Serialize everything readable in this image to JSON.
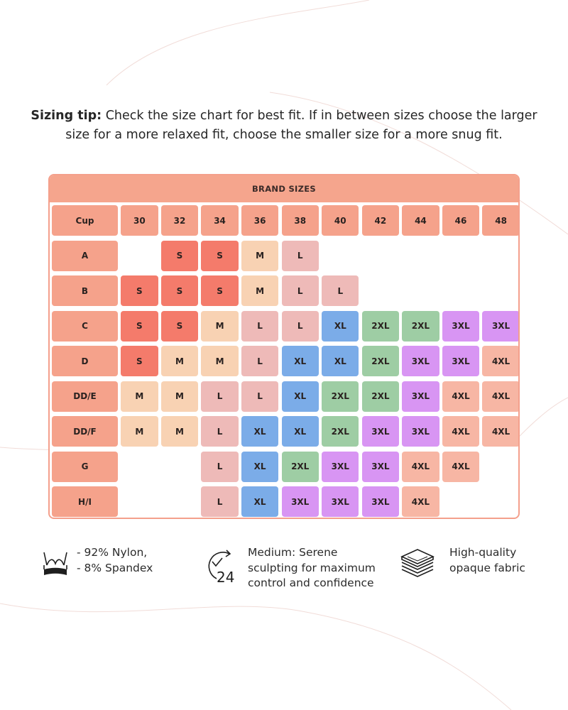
{
  "tip": {
    "label": "Sizing tip:",
    "text": " Check the size chart for best fit. If in between sizes choose the larger size for a more relaxed fit, choose the smaller size for a more snug fit."
  },
  "chart": {
    "title": "BRAND SIZES",
    "corner_label": "Cup",
    "bands": [
      "30",
      "32",
      "34",
      "36",
      "38",
      "40",
      "42",
      "44",
      "46",
      "48"
    ],
    "rows": [
      {
        "cup": "A",
        "sizes": [
          "",
          "S",
          "S",
          "M",
          "L",
          "",
          "",
          "",
          "",
          ""
        ]
      },
      {
        "cup": "B",
        "sizes": [
          "S",
          "S",
          "S",
          "M",
          "L",
          "L",
          "",
          "",
          "",
          ""
        ]
      },
      {
        "cup": "C",
        "sizes": [
          "S",
          "S",
          "M",
          "L",
          "L",
          "XL",
          "2XL",
          "2XL",
          "3XL",
          "3XL"
        ]
      },
      {
        "cup": "D",
        "sizes": [
          "S",
          "M",
          "M",
          "L",
          "XL",
          "XL",
          "2XL",
          "3XL",
          "3XL",
          "4XL"
        ]
      },
      {
        "cup": "DD/E",
        "sizes": [
          "M",
          "M",
          "L",
          "L",
          "XL",
          "2XL",
          "2XL",
          "3XL",
          "4XL",
          "4XL"
        ]
      },
      {
        "cup": "DD/F",
        "sizes": [
          "M",
          "M",
          "L",
          "XL",
          "XL",
          "2XL",
          "3XL",
          "3XL",
          "4XL",
          "4XL"
        ]
      },
      {
        "cup": "G",
        "sizes": [
          "",
          "",
          "L",
          "XL",
          "2XL",
          "3XL",
          "3XL",
          "4XL",
          "4XL",
          ""
        ]
      },
      {
        "cup": "H/I",
        "sizes": [
          "",
          "",
          "L",
          "XL",
          "3XL",
          "3XL",
          "3XL",
          "4XL",
          "",
          ""
        ]
      }
    ],
    "colors": {
      "header": "#f5a58d",
      "S": "#f47b6b",
      "M": "#f8d2b3",
      "L": "#eebab8",
      "XL": "#7bace8",
      "2XL": "#9ecda4",
      "3XL": "#d895f3",
      "4XL": "#f7b6a4"
    }
  },
  "features": [
    {
      "icon": "bra-icon",
      "lines": [
        "- 92% Nylon,",
        "- 8% Spandex"
      ]
    },
    {
      "icon": "24-hour-clock-icon",
      "lines": [
        "Medium: Serene",
        "sculpting for maximum",
        "control and confidence"
      ]
    },
    {
      "icon": "fabric-layers-icon",
      "lines": [
        "High-quality",
        "opaque fabric"
      ]
    }
  ]
}
